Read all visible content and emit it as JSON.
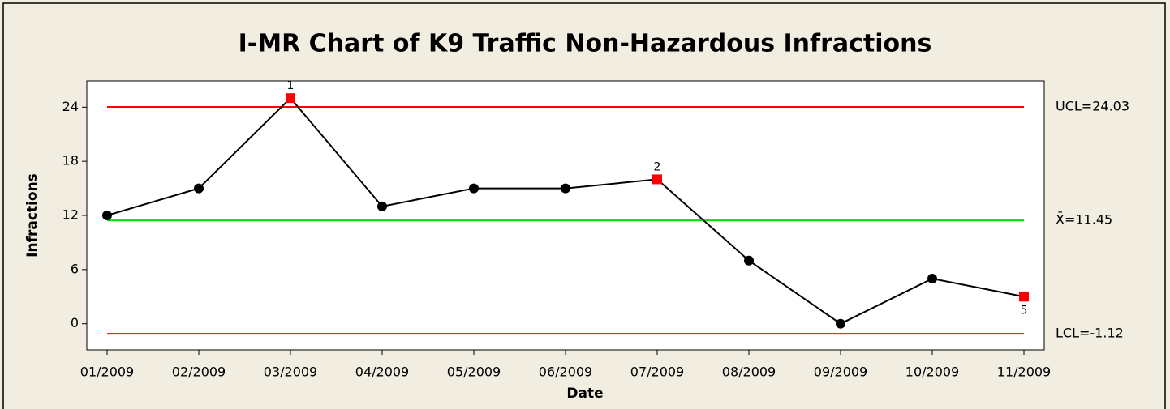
{
  "chart_data": {
    "type": "line",
    "title": "I-MR Chart of K9 Traffic Non-Hazardous Infractions",
    "x_label": "Date",
    "y_label": "Infractions",
    "categories": [
      "01/2009",
      "02/2009",
      "03/2009",
      "04/2009",
      "05/2009",
      "06/2009",
      "07/2009",
      "08/2009",
      "09/2009",
      "10/2009",
      "11/2009"
    ],
    "series": [
      {
        "name": "Infractions",
        "color": "#000000",
        "flag_color": "#ff0000",
        "values": [
          12,
          15,
          25,
          13,
          15,
          15,
          16,
          7,
          0,
          5,
          3
        ],
        "point_labels": [
          null,
          null,
          "1",
          null,
          null,
          null,
          "2",
          null,
          null,
          null,
          "5"
        ]
      }
    ],
    "control_lines": [
      {
        "value": 24.03,
        "label": "UCL=24.03",
        "color": "#ff0000"
      },
      {
        "value": 11.45,
        "label": "X̄=11.45",
        "color": "#00e000"
      },
      {
        "value": -1.12,
        "label": "LCL=-1.12",
        "color": "#ff0000"
      }
    ],
    "ylim": [
      -2.9,
      26.9
    ],
    "yticks": [
      0,
      6,
      12,
      18,
      24
    ]
  }
}
